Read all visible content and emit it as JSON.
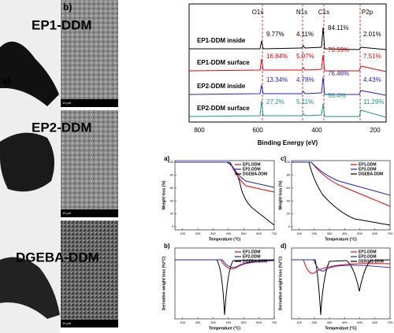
{
  "panel_labels": {
    "photos": "a)",
    "sem": "b)"
  },
  "samples": [
    "EP1-DDM",
    "EP2-DDM",
    "DGEBA-DDM"
  ],
  "sem_captions": [
    "10 μm",
    "10 μm",
    "10 μm"
  ],
  "xps": {
    "peaks": [
      "O1s",
      "N1s",
      "C1s",
      "P2p"
    ],
    "spectra": [
      {
        "name": "EP1-DDM inside",
        "pct": [
          "9.77%",
          "4.11%",
          "84.11%",
          "2.01%"
        ]
      },
      {
        "name": "EP1-DDM surface",
        "pct": [
          "16.84%",
          "5.07%",
          "70.59%",
          "7.51%"
        ]
      },
      {
        "name": "EP2-DDM inside",
        "pct": [
          "13.34%",
          "4.78%",
          "76.46%",
          "4.43%"
        ]
      },
      {
        "name": "EP2-DDM surface",
        "pct": [
          "27.2%",
          "5.11%",
          "56.4%",
          "11.29%"
        ]
      }
    ],
    "xticks": [
      "800",
      "600",
      "400",
      "200"
    ],
    "xlabel": "Binding Energy (eV)"
  },
  "tga": [
    {
      "label": "a)",
      "ylabel": "Weight loss (%)",
      "xlabel": "Temperature (°C)",
      "legend": [
        "EP1-DDM",
        "EP2-DDM",
        "DGEBA-DDM"
      ],
      "xticks": [
        100,
        200,
        300,
        400,
        500,
        600,
        700
      ],
      "yticks": [
        0,
        20,
        40,
        60,
        80,
        100
      ]
    },
    {
      "label": "c)",
      "ylabel": "Weight loss (%)",
      "xlabel": "Temperature (°C)",
      "legend": [
        "EP1-DDM",
        "EP2-DDM",
        "DGEBA-DDM"
      ],
      "xticks": [
        100,
        200,
        300,
        400,
        500,
        600,
        700
      ],
      "yticks": [
        0,
        20,
        40,
        60,
        80,
        100
      ]
    },
    {
      "label": "b)",
      "ylabel": "Derivative weight loss (%/°C)",
      "xlabel": "Temperature (°C)",
      "legend": [
        "EP1-DDM",
        "EP2-DDM",
        "DGEBA-DDM"
      ],
      "xticks": [
        100,
        200,
        300,
        400,
        500,
        600,
        700
      ],
      "yticks": []
    },
    {
      "label": "d)",
      "ylabel": "Derivative weight loss (%/°C)",
      "xlabel": "Temperature (°C)",
      "legend": [
        "EP1-DDM",
        "EP2-DDM",
        "DER331-DDM"
      ],
      "xticks": [
        100,
        200,
        300,
        400,
        500,
        600,
        700
      ],
      "yticks": []
    }
  ]
}
